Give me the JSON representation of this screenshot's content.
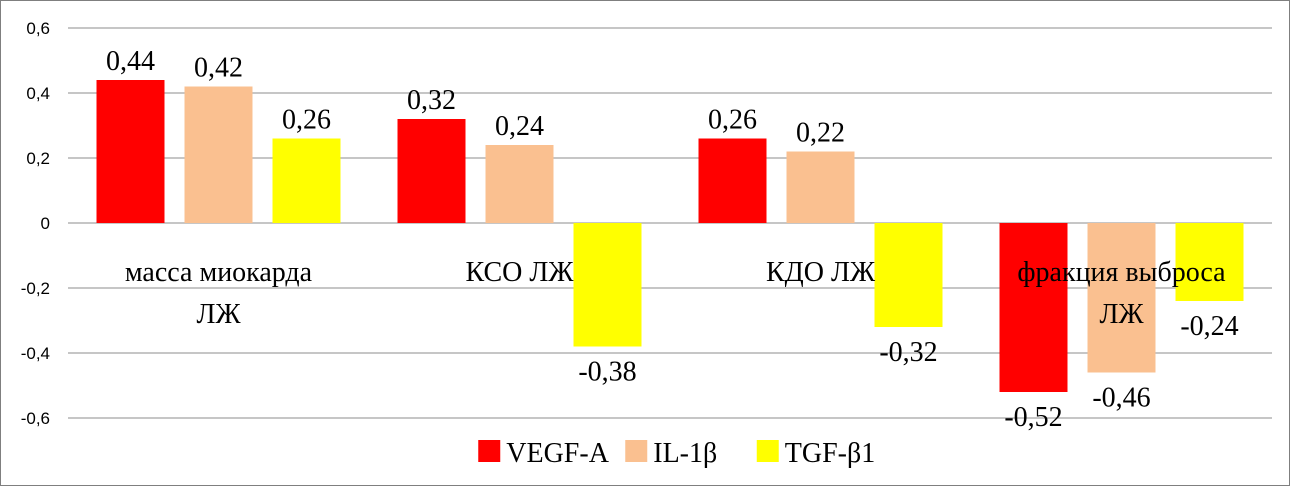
{
  "chart_data": {
    "type": "bar",
    "categories": [
      [
        "масса миокарда",
        "ЛЖ"
      ],
      [
        "КСО ЛЖ"
      ],
      [
        "КДО ЛЖ"
      ],
      [
        "фракция выброса",
        "ЛЖ"
      ]
    ],
    "series": [
      {
        "name": "VEGF-A",
        "color": "#ff0000",
        "values": [
          0.44,
          0.32,
          0.26,
          -0.52
        ],
        "labels": [
          "0,44",
          "0,32",
          "0,26",
          "-0,52"
        ]
      },
      {
        "name": "IL-1β",
        "color": "#fac090",
        "values": [
          0.42,
          0.24,
          0.22,
          -0.46
        ],
        "labels": [
          "0,42",
          "0,24",
          "0,22",
          "-0,46"
        ]
      },
      {
        "name": "TGF-β1",
        "color": "#ffff00",
        "values": [
          0.26,
          -0.38,
          -0.32,
          -0.24
        ],
        "labels": [
          "0,26",
          "-0,38",
          "-0,32",
          "-0,24"
        ]
      }
    ],
    "ylim": [
      -0.6,
      0.6
    ],
    "yticks": [
      0.6,
      0.4,
      0.2,
      0,
      -0.2,
      -0.4,
      -0.6
    ],
    "ytick_labels": [
      "0,6",
      "0,4",
      "0,2",
      "0",
      "-0,2",
      "-0,4",
      "-0,6"
    ],
    "grid": true,
    "legend_position": "bottom"
  }
}
